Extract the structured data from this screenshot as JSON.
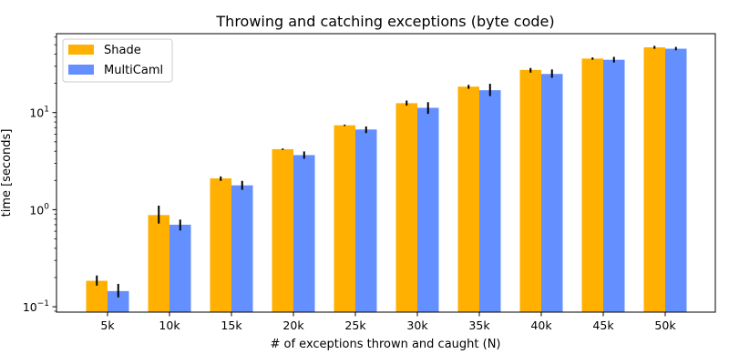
{
  "chart_data": {
    "type": "bar",
    "title": "Throwing and catching exceptions (byte code)",
    "xlabel": "# of exceptions thrown and caught (N)",
    "ylabel": "time [seconds]",
    "yscale": "log",
    "ylim": [
      0.088,
      65
    ],
    "y_ticks": [
      {
        "value": 0.1,
        "base": "10",
        "exp": "−1"
      },
      {
        "value": 1,
        "base": "10",
        "exp": "0"
      },
      {
        "value": 10,
        "base": "10",
        "exp": "1"
      }
    ],
    "categories": [
      "5k",
      "10k",
      "15k",
      "20k",
      "25k",
      "30k",
      "35k",
      "40k",
      "45k",
      "50k"
    ],
    "series": [
      {
        "name": "Shade",
        "color": "#ffb000",
        "values": [
          0.185,
          0.88,
          2.1,
          4.2,
          7.4,
          12.5,
          18.5,
          27.5,
          36.0,
          47.0
        ],
        "err_low": [
          0.165,
          0.72,
          1.98,
          4.13,
          7.28,
          11.8,
          17.6,
          25.8,
          35.0,
          45.4
        ],
        "err_high": [
          0.21,
          1.1,
          2.2,
          4.27,
          7.52,
          13.3,
          19.3,
          28.8,
          37.0,
          48.7
        ]
      },
      {
        "name": "MultiCaml",
        "color": "#648fff",
        "values": [
          0.145,
          0.7,
          1.78,
          3.65,
          6.7,
          11.2,
          17.0,
          25.0,
          35.0,
          45.5
        ],
        "err_low": [
          0.125,
          0.61,
          1.6,
          3.35,
          6.15,
          9.7,
          14.8,
          22.8,
          32.8,
          43.8
        ],
        "err_high": [
          0.172,
          0.79,
          1.98,
          3.98,
          7.2,
          12.8,
          19.8,
          27.8,
          37.5,
          47.5
        ]
      }
    ],
    "legend_position": "top-left",
    "grid": false
  }
}
